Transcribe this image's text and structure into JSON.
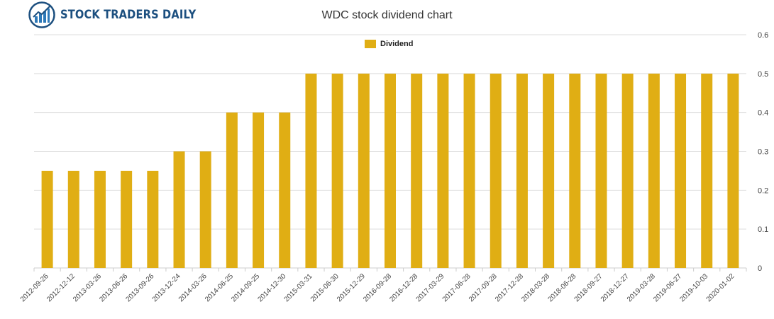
{
  "brand": {
    "name": "STOCK TRADERS DAILY"
  },
  "colors": {
    "bar": "#e0ae14",
    "grid": "#dddddd",
    "axis_text": "#444444",
    "brand": "#1c4f7f"
  },
  "chart_data": {
    "type": "bar",
    "title": "WDC stock dividend chart",
    "xlabel": "",
    "ylabel": "",
    "ylim": [
      0,
      0.6
    ],
    "yticks": [
      "0",
      "0.1",
      "0.2",
      "0.3",
      "0.4",
      "0.5",
      "0.6"
    ],
    "grid": true,
    "legend": {
      "position": "top-center",
      "label": "Dividend"
    },
    "categories": [
      "2012-09-26",
      "2012-12-12",
      "2013-03-26",
      "2013-06-26",
      "2013-09-26",
      "2013-12-24",
      "2014-03-26",
      "2014-06-25",
      "2014-09-25",
      "2014-12-30",
      "2015-03-31",
      "2015-06-30",
      "2015-12-29",
      "2016-09-28",
      "2016-12-28",
      "2017-03-29",
      "2017-06-28",
      "2017-09-28",
      "2017-12-28",
      "2018-03-28",
      "2018-06-28",
      "2018-09-27",
      "2018-12-27",
      "2019-03-28",
      "2019-06-27",
      "2019-10-03",
      "2020-01-02"
    ],
    "series": [
      {
        "name": "Dividend",
        "values": [
          0.25,
          0.25,
          0.25,
          0.25,
          0.25,
          0.3,
          0.3,
          0.4,
          0.4,
          0.4,
          0.5,
          0.5,
          0.5,
          0.5,
          0.5,
          0.5,
          0.5,
          0.5,
          0.5,
          0.5,
          0.5,
          0.5,
          0.5,
          0.5,
          0.5,
          0.5,
          0.5
        ]
      }
    ]
  }
}
